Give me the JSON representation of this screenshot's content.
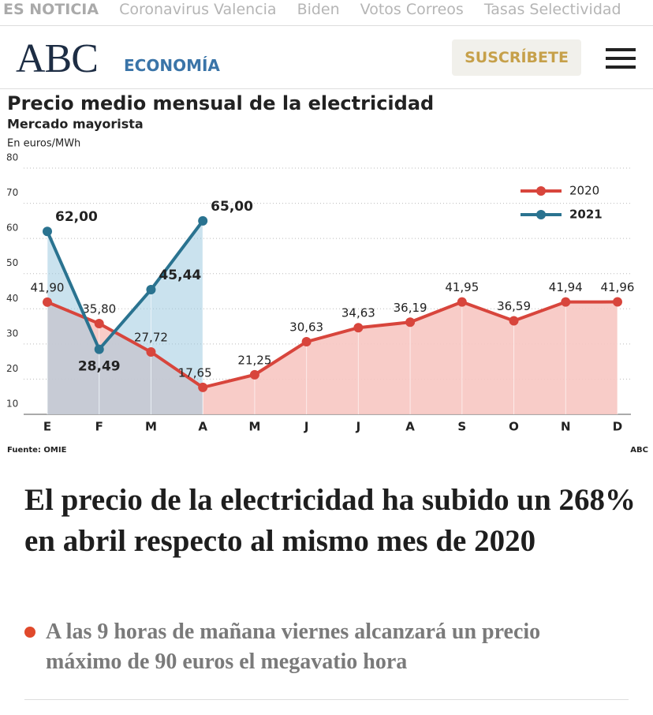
{
  "top_nav": {
    "items": [
      "ES NOTICIA",
      "Coronavirus Valencia",
      "Biden",
      "Votos Correos",
      "Tasas Selectividad"
    ]
  },
  "header": {
    "logo": "ABC",
    "section": "ECONOMÍA",
    "subscribe": "SUSCRÍBETE"
  },
  "chart_data": {
    "type": "line",
    "title": "Precio medio mensual de la electricidad",
    "subtitle": "Mercado mayorista",
    "y_label": "En euros/MWh",
    "source": "Fuente: OMIE",
    "credit": "ABC",
    "categories": [
      "E",
      "F",
      "M",
      "A",
      "M",
      "J",
      "J",
      "A",
      "S",
      "O",
      "N",
      "D"
    ],
    "series": [
      {
        "name": "2020",
        "color": "#d8453c",
        "fill": "#f7c7c2",
        "values": [
          41.9,
          35.8,
          27.72,
          17.65,
          21.25,
          30.63,
          34.63,
          36.19,
          41.95,
          36.59,
          41.94,
          41.96
        ],
        "value_labels": [
          "41,90",
          "35,80",
          "27,72",
          "17,65",
          "21,25",
          "30,63",
          "34,63",
          "36,19",
          "41,95",
          "36,59",
          "41,94",
          "41,96"
        ]
      },
      {
        "name": "2021",
        "color": "#2a7390",
        "fill": "#9fcbe0",
        "values": [
          62.0,
          28.49,
          45.44,
          65.0,
          null,
          null,
          null,
          null,
          null,
          null,
          null,
          null
        ],
        "value_labels": [
          "62,00",
          "28,49",
          "45,44",
          "65,00",
          null,
          null,
          null,
          null,
          null,
          null,
          null,
          null
        ]
      }
    ],
    "ylim": [
      10,
      80
    ],
    "yticks": [
      10,
      20,
      30,
      40,
      50,
      60,
      70,
      80
    ],
    "grid": true,
    "legend": "top-right"
  },
  "article": {
    "headline": "El precio de la electricidad ha subido un 268% en abril respecto al mismo mes de 2020",
    "summary": "A las 9 horas de mañana viernes alcanzará un precio máximo de 90 euros el megavatio hora"
  }
}
